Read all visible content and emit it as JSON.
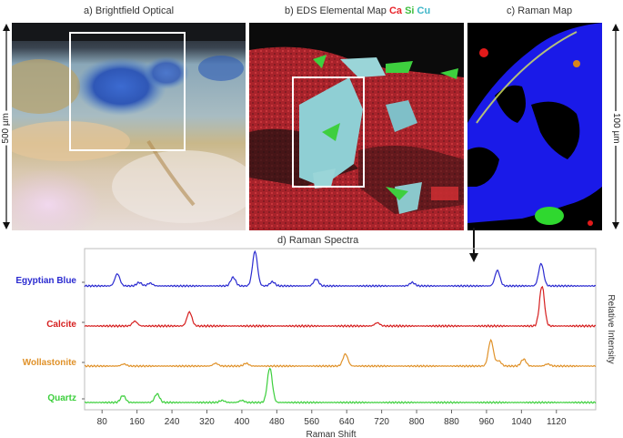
{
  "panels": {
    "a_title": "a) Brightfield Optical",
    "b_title_prefix": "b) EDS Elemental Map",
    "b_el1": "Ca",
    "b_el2": "Si",
    "b_el3": "Cu",
    "c_title": "c) Raman Map",
    "d_title": "d) Raman Spectra"
  },
  "scale": {
    "left": "500 µm",
    "right": "100 µm"
  },
  "colors": {
    "ca": "#e8232a",
    "si": "#3fbf3f",
    "cu": "#3fb6c8"
  },
  "chart_data": {
    "type": "line",
    "title": "d) Raman Spectra",
    "xlabel": "Raman Shift",
    "ylabel": "Relative Intensity",
    "xlim": [
      40,
      1210
    ],
    "x_ticks": [
      80,
      160,
      240,
      320,
      400,
      480,
      560,
      640,
      720,
      800,
      880,
      960,
      1040,
      1120
    ],
    "series": [
      {
        "name": "Egyptian Blue",
        "color": "#2b2bd0",
        "peaks": [
          [
            115,
            0.35
          ],
          [
            165,
            0.1
          ],
          [
            190,
            0.08
          ],
          [
            380,
            0.25
          ],
          [
            430,
            1.0
          ],
          [
            470,
            0.12
          ],
          [
            570,
            0.2
          ],
          [
            790,
            0.1
          ],
          [
            985,
            0.45
          ],
          [
            1085,
            0.65
          ]
        ]
      },
      {
        "name": "Calcite",
        "color": "#d62020",
        "peaks": [
          [
            155,
            0.12
          ],
          [
            280,
            0.35
          ],
          [
            710,
            0.08
          ],
          [
            1087,
            1.0
          ]
        ]
      },
      {
        "name": "Wollastonite",
        "color": "#e0922a",
        "peaks": [
          [
            130,
            0.06
          ],
          [
            340,
            0.08
          ],
          [
            410,
            0.08
          ],
          [
            637,
            0.35
          ],
          [
            970,
            0.75
          ],
          [
            988,
            0.15
          ],
          [
            1045,
            0.2
          ],
          [
            1100,
            0.06
          ]
        ]
      },
      {
        "name": "Quartz",
        "color": "#3ccf3c",
        "peaks": [
          [
            128,
            0.2
          ],
          [
            206,
            0.25
          ],
          [
            355,
            0.06
          ],
          [
            400,
            0.06
          ],
          [
            464,
            1.0
          ]
        ]
      }
    ]
  }
}
